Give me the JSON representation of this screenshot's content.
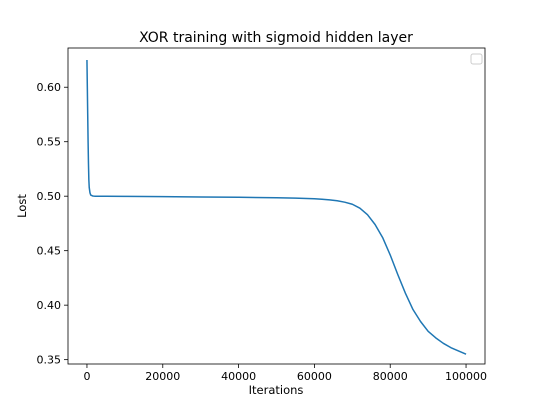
{
  "chart_data": {
    "type": "line",
    "title": "XOR training with sigmoid hidden layer",
    "xlabel": "Iterations",
    "ylabel": "Lost",
    "xlim": [
      -5000,
      105000
    ],
    "ylim": [
      0.346,
      0.636
    ],
    "xticks": [
      0,
      20000,
      40000,
      60000,
      80000,
      100000
    ],
    "yticks": [
      0.35,
      0.4,
      0.45,
      0.5,
      0.55,
      0.6
    ],
    "ytick_labels": [
      "0.35",
      "0.40",
      "0.45",
      "0.50",
      "0.55",
      "0.60"
    ],
    "grid": false,
    "legend": "top-right (empty)",
    "series": [
      {
        "color": "#1f77b4",
        "x": [
          0,
          100,
          200,
          300,
          400,
          500,
          600,
          800,
          1000,
          1500,
          2000,
          5000,
          10000,
          20000,
          30000,
          40000,
          50000,
          55000,
          60000,
          62000,
          64000,
          66000,
          68000,
          70000,
          72000,
          74000,
          76000,
          78000,
          80000,
          82000,
          84000,
          86000,
          88000,
          90000,
          92000,
          94000,
          96000,
          98000,
          100000
        ],
        "y": [
          0.625,
          0.6,
          0.575,
          0.55,
          0.53,
          0.515,
          0.508,
          0.503,
          0.501,
          0.5002,
          0.5,
          0.4999,
          0.4998,
          0.4996,
          0.4993,
          0.499,
          0.4986,
          0.4982,
          0.4977,
          0.4972,
          0.4966,
          0.4958,
          0.4945,
          0.4926,
          0.489,
          0.483,
          0.474,
          0.462,
          0.446,
          0.428,
          0.411,
          0.396,
          0.385,
          0.376,
          0.37,
          0.365,
          0.361,
          0.358,
          0.355
        ]
      }
    ]
  }
}
